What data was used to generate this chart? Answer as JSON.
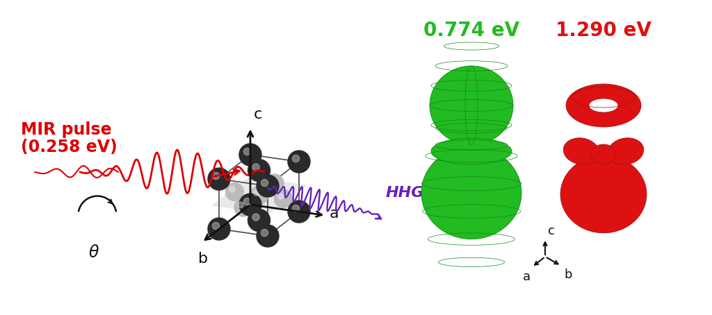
{
  "bg_color": "#ffffff",
  "mir_label_line1": "MIR pulse",
  "mir_label_line2": "(0.258 eV)",
  "mir_color": "#dd0000",
  "hhg_label": "HHG",
  "hhg_color": "#6622bb",
  "theta_label": "θ",
  "c_axis": "c",
  "a_axis": "a",
  "b_axis": "b",
  "label_774": "0.774 eV",
  "label_129": "1.290 eV",
  "green_color": "#22bb22",
  "green_edge": "#118811",
  "red_color": "#dd1111",
  "red_edge": "#991111",
  "axis_color": "#111111",
  "slab_color": "#d8d8d8",
  "slab_alpha": 0.55,
  "atom_dark": "#2a2a2a",
  "atom_mid": "#888888",
  "atom_light": "#bbbbbb"
}
